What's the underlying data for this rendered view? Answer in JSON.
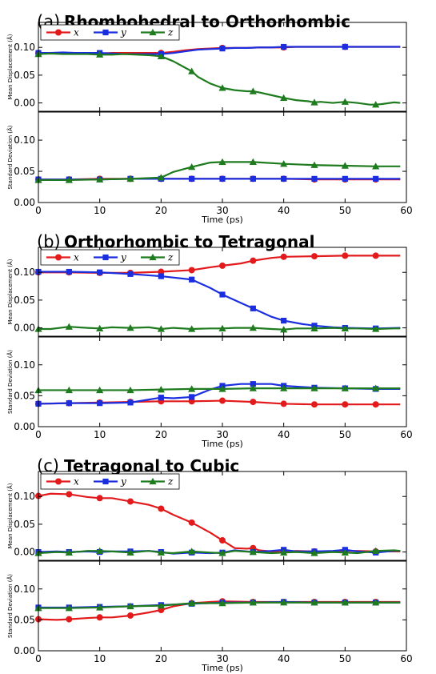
{
  "colors": {
    "x": "#e31a1c",
    "y": "#1a2ee0",
    "z": "#1e7b1e"
  },
  "legend_labels": [
    "x",
    "y",
    "z"
  ],
  "xlabel": "Time (ps)",
  "xlim": [
    0,
    60
  ],
  "xticks": [
    0,
    10,
    20,
    30,
    40,
    50,
    60
  ],
  "chart_data": [
    {
      "type": "line",
      "letter": "(a)",
      "title": "Rhombohedral to Orthorhombic",
      "top": {
        "ylabel": "Mean Displacement (Å)",
        "ylim": [
          -0.015,
          0.145
        ],
        "yticks": [
          "0.00",
          "0.05",
          "0.10"
        ],
        "legend": "top-left",
        "series": [
          {
            "name": "x",
            "x": [
              0,
              2,
              4,
              6,
              8,
              10,
              12,
              14,
              16,
              18,
              20,
              22,
              24,
              26,
              28,
              30,
              32,
              34,
              36,
              38,
              40,
              42,
              44,
              46,
              48,
              50,
              52,
              54,
              56,
              58,
              59
            ],
            "y": [
              0.09,
              0.09,
              0.09,
              0.09,
              0.089,
              0.089,
              0.09,
              0.09,
              0.09,
              0.09,
              0.09,
              0.092,
              0.095,
              0.097,
              0.098,
              0.099,
              0.099,
              0.099,
              0.1,
              0.1,
              0.1,
              0.101,
              0.101,
              0.101,
              0.101,
              0.101,
              0.101,
              0.101,
              0.101,
              0.101,
              0.101
            ]
          },
          {
            "name": "y",
            "x": [
              0,
              2,
              4,
              6,
              8,
              10,
              12,
              14,
              16,
              18,
              20,
              22,
              24,
              26,
              28,
              30,
              32,
              34,
              36,
              38,
              40,
              42,
              44,
              46,
              48,
              50,
              52,
              54,
              56,
              58,
              59
            ],
            "y": [
              0.09,
              0.09,
              0.091,
              0.09,
              0.09,
              0.09,
              0.089,
              0.088,
              0.088,
              0.088,
              0.088,
              0.09,
              0.093,
              0.096,
              0.097,
              0.098,
              0.099,
              0.099,
              0.1,
              0.1,
              0.101,
              0.101,
              0.101,
              0.101,
              0.101,
              0.101,
              0.101,
              0.101,
              0.101,
              0.101,
              0.101
            ]
          },
          {
            "name": "z",
            "x": [
              0,
              2,
              4,
              6,
              8,
              10,
              12,
              14,
              16,
              18,
              20,
              22,
              24,
              25,
              26,
              28,
              30,
              32,
              34,
              35,
              36,
              38,
              40,
              42,
              44,
              45,
              46,
              48,
              50,
              52,
              54,
              55,
              56,
              58,
              59
            ],
            "y": [
              0.088,
              0.089,
              0.088,
              0.088,
              0.088,
              0.087,
              0.087,
              0.088,
              0.087,
              0.086,
              0.084,
              0.075,
              0.063,
              0.057,
              0.047,
              0.035,
              0.027,
              0.023,
              0.021,
              0.021,
              0.019,
              0.014,
              0.009,
              0.005,
              0.003,
              0.001,
              0.002,
              0.0,
              0.002,
              0.0,
              -0.003,
              -0.003,
              -0.002,
              0.001,
              0.0
            ]
          }
        ]
      },
      "bottom": {
        "ylabel": "Standard Deviation (Å)",
        "ylim": [
          0.0,
          0.145
        ],
        "yticks": [
          "0.00",
          "0.05",
          "0.10"
        ],
        "series": [
          {
            "name": "x",
            "x": [
              0,
              5,
              10,
              15,
              20,
              25,
              30,
              35,
              40,
              45,
              50,
              55,
              59
            ],
            "y": [
              0.037,
              0.037,
              0.038,
              0.038,
              0.038,
              0.038,
              0.038,
              0.038,
              0.038,
              0.037,
              0.037,
              0.037,
              0.037
            ]
          },
          {
            "name": "y",
            "x": [
              0,
              5,
              10,
              15,
              20,
              25,
              30,
              35,
              40,
              45,
              50,
              55,
              59
            ],
            "y": [
              0.037,
              0.037,
              0.037,
              0.038,
              0.038,
              0.038,
              0.038,
              0.038,
              0.038,
              0.038,
              0.038,
              0.038,
              0.038
            ]
          },
          {
            "name": "z",
            "x": [
              0,
              5,
              10,
              15,
              20,
              22,
              25,
              28,
              30,
              35,
              40,
              45,
              50,
              55,
              59
            ],
            "y": [
              0.036,
              0.036,
              0.037,
              0.038,
              0.04,
              0.049,
              0.057,
              0.064,
              0.065,
              0.065,
              0.062,
              0.06,
              0.059,
              0.058,
              0.058
            ]
          }
        ]
      }
    },
    {
      "type": "line",
      "letter": "(b)",
      "title": "Orthorhombic to Tetragonal",
      "top": {
        "ylabel": "Mean Displacement (Å)",
        "ylim": [
          -0.015,
          0.145
        ],
        "yticks": [
          "0.00",
          "0.05",
          "0.10"
        ],
        "legend": "top-left",
        "series": [
          {
            "name": "x",
            "x": [
              0,
              5,
              10,
              15,
              20,
              25,
              28,
              30,
              33,
              35,
              38,
              40,
              45,
              50,
              55,
              59
            ],
            "y": [
              0.1,
              0.1,
              0.099,
              0.099,
              0.101,
              0.104,
              0.109,
              0.112,
              0.116,
              0.121,
              0.126,
              0.128,
              0.129,
              0.13,
              0.13,
              0.13
            ]
          },
          {
            "name": "y",
            "x": [
              0,
              5,
              10,
              15,
              20,
              25,
              28,
              30,
              33,
              35,
              38,
              40,
              43,
              45,
              48,
              50,
              55,
              59
            ],
            "y": [
              0.101,
              0.101,
              0.1,
              0.097,
              0.093,
              0.087,
              0.072,
              0.06,
              0.045,
              0.035,
              0.02,
              0.013,
              0.007,
              0.004,
              0.001,
              0.0,
              -0.001,
              0.0
            ]
          },
          {
            "name": "z",
            "x": [
              0,
              2,
              5,
              8,
              10,
              12,
              15,
              18,
              20,
              22,
              25,
              28,
              30,
              32,
              35,
              38,
              40,
              42,
              45,
              48,
              50,
              52,
              55,
              58,
              59
            ],
            "y": [
              -0.002,
              -0.002,
              0.002,
              0.0,
              -0.001,
              0.001,
              0.0,
              0.001,
              -0.002,
              0.0,
              -0.002,
              -0.001,
              -0.001,
              0.0,
              0.0,
              -0.002,
              -0.003,
              -0.001,
              -0.001,
              0.0,
              -0.001,
              -0.001,
              -0.002,
              -0.001,
              -0.001
            ]
          }
        ]
      },
      "bottom": {
        "ylabel": "Standard Deviation (Å)",
        "ylim": [
          0.0,
          0.145
        ],
        "yticks": [
          "0.00",
          "0.05",
          "0.10"
        ],
        "series": [
          {
            "name": "x",
            "x": [
              0,
              5,
              10,
              15,
              20,
              25,
              30,
              35,
              40,
              45,
              50,
              55,
              59
            ],
            "y": [
              0.037,
              0.038,
              0.039,
              0.04,
              0.041,
              0.041,
              0.042,
              0.04,
              0.037,
              0.036,
              0.036,
              0.036,
              0.036
            ]
          },
          {
            "name": "y",
            "x": [
              0,
              5,
              10,
              15,
              20,
              22,
              25,
              28,
              30,
              33,
              35,
              38,
              40,
              45,
              50,
              55,
              59
            ],
            "y": [
              0.037,
              0.038,
              0.038,
              0.039,
              0.047,
              0.046,
              0.048,
              0.06,
              0.066,
              0.069,
              0.069,
              0.069,
              0.066,
              0.063,
              0.062,
              0.061,
              0.061
            ]
          },
          {
            "name": "z",
            "x": [
              0,
              5,
              10,
              15,
              20,
              25,
              30,
              35,
              40,
              45,
              50,
              55,
              59
            ],
            "y": [
              0.059,
              0.059,
              0.059,
              0.059,
              0.06,
              0.061,
              0.061,
              0.062,
              0.062,
              0.062,
              0.062,
              0.062,
              0.062
            ]
          }
        ]
      }
    },
    {
      "type": "line",
      "letter": "(c)",
      "title": "Tetragonal to Cubic",
      "top": {
        "ylabel": "Mean Displacement (Å)",
        "ylim": [
          -0.015,
          0.145
        ],
        "yticks": [
          "0.00",
          "0.05",
          "0.10"
        ],
        "legend": "top-left",
        "series": [
          {
            "name": "x",
            "x": [
              0,
              2,
              5,
              8,
              10,
              12,
              15,
              18,
              20,
              22,
              25,
              28,
              30,
              32,
              34,
              35,
              36,
              38,
              40,
              42,
              45,
              48,
              50,
              52,
              55,
              58,
              59
            ],
            "y": [
              0.101,
              0.105,
              0.104,
              0.099,
              0.097,
              0.097,
              0.091,
              0.085,
              0.078,
              0.067,
              0.053,
              0.035,
              0.021,
              0.007,
              0.006,
              0.007,
              0.003,
              0.001,
              0.0,
              0.002,
              0.001,
              0.001,
              0.002,
              0.002,
              0.001,
              0.001,
              0.001
            ]
          },
          {
            "name": "y",
            "x": [
              0,
              3,
              5,
              8,
              10,
              12,
              15,
              18,
              20,
              22,
              25,
              28,
              30,
              32,
              35,
              38,
              40,
              42,
              45,
              48,
              50,
              52,
              55,
              58,
              59
            ],
            "y": [
              0.0,
              0.001,
              0.0,
              0.001,
              0.0,
              0.001,
              0.001,
              0.002,
              0.0,
              -0.003,
              -0.001,
              -0.002,
              -0.001,
              0.003,
              0.0,
              0.002,
              0.004,
              0.001,
              0.001,
              0.002,
              0.004,
              0.001,
              -0.001,
              0.002,
              0.002
            ]
          },
          {
            "name": "z",
            "x": [
              0,
              3,
              5,
              8,
              10,
              12,
              15,
              18,
              20,
              22,
              25,
              28,
              30,
              32,
              35,
              38,
              40,
              42,
              45,
              48,
              50,
              52,
              55,
              58,
              59
            ],
            "y": [
              -0.002,
              0.0,
              -0.001,
              0.002,
              0.002,
              0.001,
              -0.001,
              0.002,
              -0.001,
              -0.002,
              0.001,
              -0.001,
              -0.002,
              0.002,
              0.0,
              -0.002,
              -0.001,
              0.0,
              -0.002,
              0.0,
              -0.001,
              -0.002,
              0.002,
              0.003,
              0.002
            ]
          }
        ]
      },
      "bottom": {
        "ylabel": "Standard Deviation (Å)",
        "ylim": [
          0.0,
          0.145
        ],
        "yticks": [
          "0.00",
          "0.05",
          "0.10"
        ],
        "series": [
          {
            "name": "x",
            "x": [
              0,
              3,
              5,
              8,
              10,
              12,
              15,
              18,
              20,
              22,
              25,
              28,
              30,
              35,
              40,
              45,
              50,
              55,
              59
            ],
            "y": [
              0.051,
              0.05,
              0.051,
              0.053,
              0.054,
              0.054,
              0.057,
              0.062,
              0.066,
              0.072,
              0.077,
              0.079,
              0.08,
              0.079,
              0.079,
              0.079,
              0.079,
              0.079,
              0.079
            ]
          },
          {
            "name": "y",
            "x": [
              0,
              5,
              10,
              15,
              20,
              25,
              30,
              35,
              40,
              45,
              50,
              55,
              59
            ],
            "y": [
              0.07,
              0.07,
              0.071,
              0.072,
              0.074,
              0.076,
              0.078,
              0.078,
              0.079,
              0.078,
              0.078,
              0.078,
              0.078
            ]
          },
          {
            "name": "z",
            "x": [
              0,
              5,
              10,
              15,
              20,
              25,
              30,
              35,
              40,
              45,
              50,
              55,
              59
            ],
            "y": [
              0.069,
              0.069,
              0.07,
              0.072,
              0.073,
              0.077,
              0.077,
              0.078,
              0.078,
              0.078,
              0.078,
              0.078,
              0.078
            ]
          }
        ]
      }
    }
  ]
}
